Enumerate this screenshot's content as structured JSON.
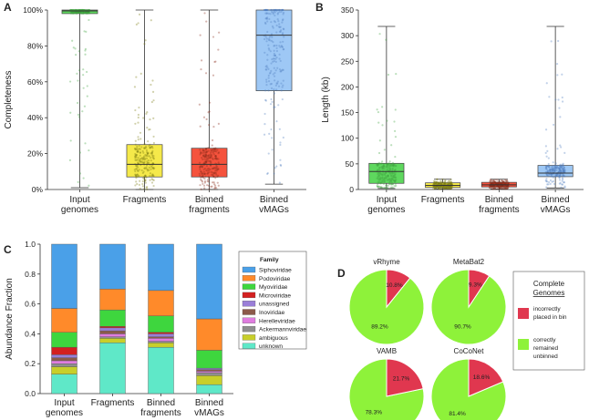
{
  "chart_data": [
    {
      "panel": "A",
      "type": "box",
      "ylabel": "Completeness",
      "ylim": [
        0,
        100
      ],
      "yticks": [
        "0%",
        "20%",
        "40%",
        "60%",
        "80%",
        "100%"
      ],
      "categories": [
        "Input genomes",
        "Fragments",
        "Binned fragments",
        "Binned vMAGs"
      ],
      "boxes": [
        {
          "name": "Input genomes",
          "min": 1,
          "q1": 98,
          "median": 99.5,
          "q3": 100,
          "max": 100,
          "color": "#5ed85e",
          "dots": "#3fa43f"
        },
        {
          "name": "Fragments",
          "min": 0,
          "q1": 7,
          "median": 14,
          "q3": 25,
          "max": 100,
          "color": "#f5e94a",
          "dots": "#7a7a10"
        },
        {
          "name": "Binned fragments",
          "min": 0,
          "q1": 7,
          "median": 14,
          "q3": 23,
          "max": 100,
          "color": "#f5533d",
          "dots": "#8a2a1a"
        },
        {
          "name": "Binned vMAGs",
          "min": 3,
          "q1": 55,
          "median": 86,
          "q3": 100,
          "max": 100,
          "color": "#9ec8f5",
          "dots": "#4f7fc0"
        }
      ]
    },
    {
      "panel": "B",
      "type": "box",
      "ylabel": "Length (kb)",
      "ylim": [
        0,
        350
      ],
      "yticks": [
        "0",
        "50",
        "100",
        "150",
        "200",
        "250",
        "300",
        "350"
      ],
      "categories": [
        "Input genomes",
        "Fragments",
        "Binned fragments",
        "Binned vMAGs"
      ],
      "boxes": [
        {
          "name": "Input genomes",
          "min": 2,
          "q1": 12,
          "median": 35,
          "q3": 51,
          "max": 318,
          "color": "#5ed85e",
          "dots": "#3fa43f"
        },
        {
          "name": "Fragments",
          "min": 1,
          "q1": 4,
          "median": 8,
          "q3": 13,
          "max": 20,
          "color": "#f5e94a",
          "dots": "#7a7a10"
        },
        {
          "name": "Binned fragments",
          "min": 1,
          "q1": 5,
          "median": 9,
          "q3": 14,
          "max": 20,
          "color": "#f5533d",
          "dots": "#8a2a1a"
        },
        {
          "name": "Binned vMAGs",
          "min": 3,
          "q1": 25,
          "median": 32,
          "q3": 47,
          "max": 318,
          "color": "#9ec8f5",
          "dots": "#4f7fc0"
        }
      ]
    },
    {
      "panel": "C",
      "type": "stacked_bar",
      "ylabel": "Abundance Fraction",
      "ylim": [
        0,
        1
      ],
      "yticks": [
        "0.0",
        "0.2",
        "0.4",
        "0.6",
        "0.8",
        "1.0"
      ],
      "categories": [
        "Input genomes",
        "Fragments",
        "Binned fragments",
        "Binned vMAGs"
      ],
      "legend_title": "Family",
      "series": [
        {
          "name": "unknown",
          "color": "#5fe8c8",
          "values": [
            0.13,
            0.34,
            0.31,
            0.06
          ]
        },
        {
          "name": "ambiguous",
          "color": "#c8cf2a",
          "values": [
            0.05,
            0.03,
            0.03,
            0.06
          ]
        },
        {
          "name": "Ackermannviridae",
          "color": "#8f8f8f",
          "values": [
            0.02,
            0.01,
            0.01,
            0.02
          ]
        },
        {
          "name": "Herelleviridae",
          "color": "#e07de0",
          "values": [
            0.02,
            0.02,
            0.02,
            0.01
          ]
        },
        {
          "name": "Inoviridae",
          "color": "#8c5a4a",
          "values": [
            0.02,
            0.02,
            0.01,
            0.01
          ]
        },
        {
          "name": "unassigned",
          "color": "#9a7fd8",
          "values": [
            0.02,
            0.02,
            0.02,
            0.01
          ]
        },
        {
          "name": "Microviridae",
          "color": "#d32020",
          "values": [
            0.05,
            0.01,
            0.01,
            0.0
          ]
        },
        {
          "name": "Myoviridae",
          "color": "#3ed63e",
          "values": [
            0.1,
            0.11,
            0.11,
            0.12
          ]
        },
        {
          "name": "Podoviridae",
          "color": "#ff8a2a",
          "values": [
            0.16,
            0.14,
            0.17,
            0.21
          ]
        },
        {
          "name": "Siphoviridae",
          "color": "#4aa0e8",
          "values": [
            0.43,
            0.3,
            0.31,
            0.5
          ]
        }
      ],
      "legend_order": [
        "Siphoviridae",
        "Podoviridae",
        "Myoviridae",
        "Microviridae",
        "unassigned",
        "Inoviridae",
        "Herelleviridae",
        "Ackermannviridae",
        "ambiguous",
        "unknown"
      ]
    },
    {
      "panel": "D",
      "type": "pie",
      "legend_title": [
        "Complete",
        "Genomes"
      ],
      "legend": [
        {
          "label": [
            "incorrectly",
            "placed in bin"
          ],
          "color": "#e0374f"
        },
        {
          "label": [
            "correctly",
            "remained",
            "unbinned"
          ],
          "color": "#8ef23a"
        }
      ],
      "pies": [
        {
          "title": "vRhyme",
          "correct": 89.2,
          "incorrect": 10.8,
          "correct_label": "89.2%",
          "incorrect_label": "10.8%"
        },
        {
          "title": "MetaBat2",
          "correct": 90.7,
          "incorrect": 9.3,
          "correct_label": "90.7%",
          "incorrect_label": "9.3%"
        },
        {
          "title": "VAMB",
          "correct": 78.3,
          "incorrect": 21.7,
          "correct_label": "78.3%",
          "incorrect_label": "21.7%"
        },
        {
          "title": "CoCoNet",
          "correct": 81.4,
          "incorrect": 18.6,
          "correct_label": "81.4%",
          "incorrect_label": "18.6%"
        }
      ]
    }
  ]
}
